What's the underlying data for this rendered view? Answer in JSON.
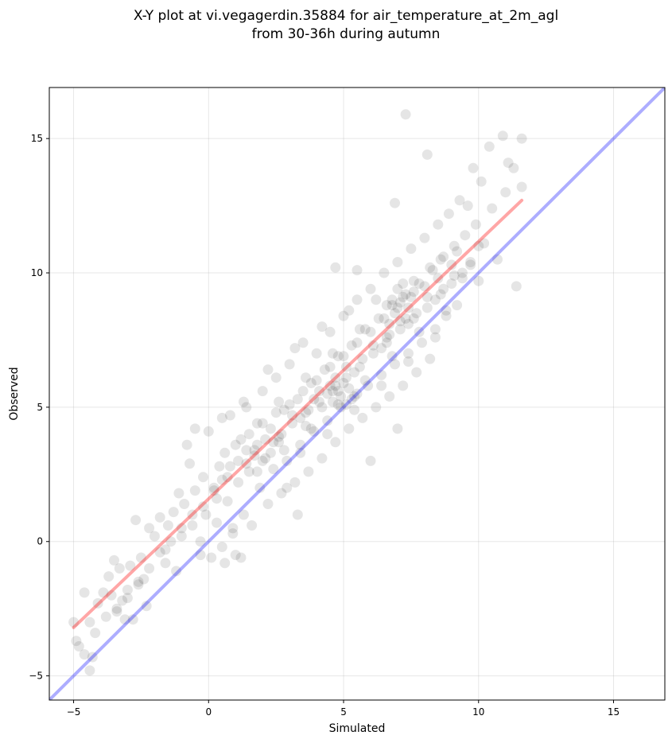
{
  "chart_data": {
    "type": "scatter",
    "title": "X-Y plot at vi.vegagerdin.35884 for air_temperature_at_2m_agl",
    "subtitle": "from 30-36h during autumn",
    "xlabel": "Simulated",
    "ylabel": "Observed",
    "xlim": [
      -5.9,
      16.9
    ],
    "ylim": [
      -5.9,
      16.9
    ],
    "x_ticks": [
      -5,
      0,
      5,
      10,
      15
    ],
    "y_ticks": [
      -5,
      0,
      5,
      10,
      15
    ],
    "x_tick_labels": [
      "−5",
      "0",
      "5",
      "10",
      "15"
    ],
    "y_tick_labels": [
      "−5",
      "0",
      "5",
      "10",
      "15"
    ],
    "grid": true,
    "point_color": "#000000",
    "point_alpha": 0.1,
    "series": [
      {
        "points": [
          [
            -5.0,
            -3.0
          ],
          [
            -4.9,
            -3.7
          ],
          [
            -4.8,
            -3.9
          ],
          [
            -4.6,
            -4.2
          ],
          [
            -4.4,
            -4.8
          ],
          [
            -4.3,
            -4.3
          ],
          [
            -4.4,
            -3.0
          ],
          [
            -4.1,
            -2.3
          ],
          [
            -3.9,
            -1.9
          ],
          [
            -3.7,
            -1.3
          ],
          [
            -3.5,
            -0.7
          ],
          [
            -3.3,
            -1.0
          ],
          [
            -3.6,
            -2.0
          ],
          [
            -3.4,
            -2.6
          ],
          [
            -3.2,
            -2.2
          ],
          [
            -3.0,
            -1.8
          ],
          [
            -2.9,
            -0.9
          ],
          [
            -2.8,
            -2.9
          ],
          [
            -2.6,
            -1.6
          ],
          [
            -2.4,
            -1.4
          ],
          [
            -2.3,
            -2.4
          ],
          [
            -2.5,
            -0.6
          ],
          [
            -2.2,
            0.5
          ],
          [
            -2.0,
            0.2
          ],
          [
            -1.8,
            0.9
          ],
          [
            -1.6,
            -0.3
          ],
          [
            -1.5,
            0.6
          ],
          [
            -1.3,
            1.1
          ],
          [
            -1.2,
            -1.1
          ],
          [
            -1.0,
            0.2
          ],
          [
            -0.9,
            1.4
          ],
          [
            -0.8,
            3.6
          ],
          [
            -0.7,
            2.9
          ],
          [
            -0.6,
            0.6
          ],
          [
            -0.5,
            1.9
          ],
          [
            -0.3,
            -0.5
          ],
          [
            -0.2,
            2.4
          ],
          [
            -0.1,
            1.0
          ],
          [
            0.0,
            4.1
          ],
          [
            0.1,
            -0.6
          ],
          [
            0.2,
            2.0
          ],
          [
            0.3,
            0.7
          ],
          [
            0.4,
            2.8
          ],
          [
            0.5,
            -0.2
          ],
          [
            0.6,
            3.3
          ],
          [
            0.7,
            1.5
          ],
          [
            0.8,
            4.7
          ],
          [
            0.9,
            0.3
          ],
          [
            1.0,
            -0.5
          ],
          [
            1.1,
            2.2
          ],
          [
            1.2,
            3.8
          ],
          [
            1.3,
            1.0
          ],
          [
            1.4,
            5.0
          ],
          [
            1.5,
            2.6
          ],
          [
            1.6,
            0.6
          ],
          [
            1.7,
            3.4
          ],
          [
            1.8,
            4.4
          ],
          [
            1.9,
            2.0
          ],
          [
            2.0,
            5.6
          ],
          [
            2.1,
            3.1
          ],
          [
            2.2,
            1.4
          ],
          [
            2.3,
            4.2
          ],
          [
            2.4,
            2.7
          ],
          [
            2.5,
            6.1
          ],
          [
            2.6,
            3.7
          ],
          [
            2.7,
            1.8
          ],
          [
            2.8,
            4.9
          ],
          [
            2.9,
            3.0
          ],
          [
            3.0,
            6.6
          ],
          [
            3.1,
            4.4
          ],
          [
            3.2,
            2.2
          ],
          [
            3.3,
            5.3
          ],
          [
            3.4,
            3.6
          ],
          [
            3.5,
            7.4
          ],
          [
            3.6,
            4.8
          ],
          [
            3.7,
            2.6
          ],
          [
            3.8,
            5.9
          ],
          [
            3.9,
            4.1
          ],
          [
            4.0,
            7.0
          ],
          [
            4.1,
            5.2
          ],
          [
            4.2,
            3.1
          ],
          [
            4.3,
            6.4
          ],
          [
            4.4,
            4.5
          ],
          [
            4.5,
            7.8
          ],
          [
            4.6,
            5.6
          ],
          [
            4.7,
            3.7
          ],
          [
            4.8,
            6.9
          ],
          [
            4.9,
            5.0
          ],
          [
            5.0,
            8.4
          ],
          [
            5.1,
            6.1
          ],
          [
            5.2,
            4.2
          ],
          [
            5.3,
            7.3
          ],
          [
            5.4,
            5.4
          ],
          [
            5.5,
            9.0
          ],
          [
            5.6,
            6.5
          ],
          [
            5.7,
            4.6
          ],
          [
            5.8,
            7.9
          ],
          [
            5.9,
            5.8
          ],
          [
            6.0,
            9.4
          ],
          [
            6.1,
            7.0
          ],
          [
            6.2,
            5.0
          ],
          [
            6.3,
            8.3
          ],
          [
            6.4,
            6.2
          ],
          [
            6.5,
            10.0
          ],
          [
            6.6,
            7.4
          ],
          [
            6.7,
            5.4
          ],
          [
            6.8,
            8.8
          ],
          [
            6.9,
            6.6
          ],
          [
            7.0,
            10.4
          ],
          [
            7.1,
            7.9
          ],
          [
            7.2,
            5.8
          ],
          [
            7.3,
            9.2
          ],
          [
            7.4,
            7.0
          ],
          [
            7.5,
            10.9
          ],
          [
            7.6,
            8.3
          ],
          [
            7.7,
            6.3
          ],
          [
            7.8,
            9.6
          ],
          [
            7.9,
            7.4
          ],
          [
            8.0,
            11.3
          ],
          [
            8.1,
            8.7
          ],
          [
            8.2,
            6.8
          ],
          [
            8.3,
            10.1
          ],
          [
            8.4,
            7.9
          ],
          [
            8.5,
            11.8
          ],
          [
            8.6,
            9.2
          ],
          [
            8.7,
            10.6
          ],
          [
            8.8,
            8.4
          ],
          [
            8.9,
            12.2
          ],
          [
            9.0,
            9.6
          ],
          [
            9.1,
            11.0
          ],
          [
            9.2,
            8.8
          ],
          [
            9.3,
            12.7
          ],
          [
            9.4,
            10.0
          ],
          [
            9.5,
            11.4
          ],
          [
            9.6,
            12.5
          ],
          [
            9.7,
            10.4
          ],
          [
            9.8,
            13.9
          ],
          [
            9.9,
            11.8
          ],
          [
            10.0,
            9.7
          ],
          [
            10.1,
            13.4
          ],
          [
            10.2,
            11.1
          ],
          [
            10.4,
            14.7
          ],
          [
            10.5,
            12.4
          ],
          [
            10.7,
            10.5
          ],
          [
            10.9,
            15.1
          ],
          [
            11.0,
            13.0
          ],
          [
            11.1,
            14.1
          ],
          [
            11.3,
            13.9
          ],
          [
            11.4,
            9.5
          ],
          [
            11.6,
            15.0
          ],
          [
            11.6,
            13.2
          ],
          [
            7.3,
            15.9
          ],
          [
            6.9,
            12.6
          ],
          [
            8.1,
            14.4
          ],
          [
            5.5,
            10.1
          ],
          [
            4.7,
            10.2
          ],
          [
            6.0,
            3.0
          ],
          [
            7.0,
            4.2
          ],
          [
            3.3,
            1.0
          ],
          [
            2.9,
            2.0
          ],
          [
            0.9,
            0.5
          ],
          [
            1.2,
            -0.6
          ],
          [
            0.6,
            -0.8
          ],
          [
            -1.6,
            -0.8
          ],
          [
            -0.3,
            0.0
          ],
          [
            -2.7,
            0.8
          ],
          [
            -3.1,
            -2.9
          ],
          [
            -4.6,
            -1.9
          ],
          [
            -1.1,
            1.8
          ],
          [
            -0.5,
            4.2
          ],
          [
            0.5,
            4.6
          ],
          [
            1.3,
            5.2
          ],
          [
            2.2,
            6.4
          ],
          [
            3.2,
            7.2
          ],
          [
            4.2,
            8.0
          ],
          [
            5.2,
            8.6
          ],
          [
            6.2,
            9.0
          ],
          [
            7.2,
            9.6
          ],
          [
            8.2,
            10.2
          ],
          [
            9.2,
            10.8
          ],
          [
            0.3,
            1.6
          ],
          [
            1.4,
            2.9
          ],
          [
            2.4,
            3.7
          ],
          [
            3.4,
            4.6
          ],
          [
            4.4,
            5.5
          ],
          [
            5.4,
            6.3
          ],
          [
            6.4,
            7.2
          ],
          [
            7.4,
            8.1
          ],
          [
            8.4,
            9.0
          ],
          [
            9.4,
            9.8
          ],
          [
            0.7,
            2.4
          ],
          [
            1.7,
            3.2
          ],
          [
            2.7,
            4.0
          ],
          [
            3.7,
            4.9
          ],
          [
            4.7,
            5.8
          ],
          [
            5.7,
            6.8
          ],
          [
            6.7,
            7.7
          ],
          [
            7.7,
            8.5
          ],
          [
            8.7,
            9.4
          ],
          [
            9.7,
            10.3
          ],
          [
            1.0,
            3.6
          ],
          [
            2.0,
            4.4
          ],
          [
            3.0,
            5.1
          ],
          [
            4.0,
            6.0
          ],
          [
            5.0,
            6.9
          ],
          [
            6.0,
            7.8
          ],
          [
            7.0,
            8.7
          ],
          [
            8.0,
            9.5
          ],
          [
            9.0,
            10.3
          ],
          [
            10.0,
            11.0
          ],
          [
            1.5,
            4.0
          ],
          [
            2.5,
            4.8
          ],
          [
            3.5,
            5.6
          ],
          [
            4.5,
            6.5
          ],
          [
            5.5,
            7.4
          ],
          [
            6.5,
            8.3
          ],
          [
            7.5,
            9.1
          ],
          [
            8.5,
            9.8
          ],
          [
            1.8,
            2.6
          ],
          [
            2.8,
            3.4
          ],
          [
            3.8,
            4.2
          ],
          [
            4.8,
            5.1
          ],
          [
            5.8,
            6.0
          ],
          [
            6.8,
            6.9
          ],
          [
            7.8,
            7.8
          ],
          [
            8.8,
            8.6
          ],
          [
            2.1,
            3.8
          ],
          [
            3.1,
            4.7
          ],
          [
            4.1,
            5.6
          ],
          [
            5.1,
            6.5
          ],
          [
            6.1,
            7.3
          ],
          [
            7.1,
            8.2
          ],
          [
            8.1,
            9.1
          ],
          [
            9.1,
            9.9
          ],
          [
            2.6,
            5.2
          ],
          [
            3.6,
            6.1
          ],
          [
            4.6,
            7.0
          ],
          [
            5.6,
            7.9
          ],
          [
            6.6,
            8.8
          ],
          [
            7.6,
            9.7
          ],
          [
            8.6,
            10.5
          ],
          [
            3.4,
            3.3
          ],
          [
            4.4,
            4.0
          ],
          [
            5.4,
            4.9
          ],
          [
            6.4,
            5.8
          ],
          [
            7.4,
            6.7
          ],
          [
            8.4,
            7.6
          ],
          [
            4.9,
            5.4
          ],
          [
            5.2,
            5.7
          ],
          [
            5.0,
            5.9
          ],
          [
            6.9,
            8.5
          ],
          [
            7.1,
            8.9
          ],
          [
            7.3,
            8.3
          ],
          [
            6.7,
            8.1
          ],
          [
            7.2,
            9.1
          ],
          [
            7.0,
            9.4
          ],
          [
            6.8,
            9.0
          ],
          [
            7.4,
            8.7
          ],
          [
            7.6,
            9.3
          ],
          [
            6.6,
            7.6
          ],
          [
            4.6,
            5.2
          ],
          [
            4.8,
            5.6
          ],
          [
            5.3,
            5.3
          ],
          [
            5.1,
            5.1
          ],
          [
            4.5,
            5.8
          ],
          [
            4.7,
            6.1
          ],
          [
            5.5,
            5.5
          ],
          [
            3.9,
            5.3
          ],
          [
            4.2,
            5.0
          ],
          [
            3.6,
            4.3
          ],
          [
            2.3,
            3.3
          ],
          [
            2.0,
            3.0
          ],
          [
            1.8,
            3.6
          ],
          [
            2.6,
            3.9
          ],
          [
            1.4,
            3.4
          ],
          [
            1.1,
            3.0
          ],
          [
            0.8,
            2.8
          ],
          [
            0.5,
            2.3
          ],
          [
            0.2,
            1.9
          ],
          [
            -0.2,
            1.3
          ],
          [
            -0.6,
            1.0
          ],
          [
            -1.0,
            0.5
          ],
          [
            -1.4,
            0.0
          ],
          [
            -1.8,
            -0.4
          ],
          [
            -2.2,
            -1.0
          ],
          [
            -2.6,
            -1.5
          ],
          [
            -3.0,
            -2.1
          ],
          [
            -3.4,
            -2.5
          ],
          [
            -3.8,
            -2.8
          ],
          [
            -4.2,
            -3.4
          ]
        ]
      }
    ],
    "lines": [
      {
        "name": "regression",
        "color": "#ff0000",
        "alpha": 0.35,
        "x": [
          -5.0,
          11.6
        ],
        "y": [
          -3.2,
          12.7
        ]
      },
      {
        "name": "identity",
        "color": "#0000ff",
        "alpha": 0.32,
        "x": [
          -5.9,
          16.9
        ],
        "y": [
          -5.9,
          16.9
        ]
      }
    ]
  }
}
